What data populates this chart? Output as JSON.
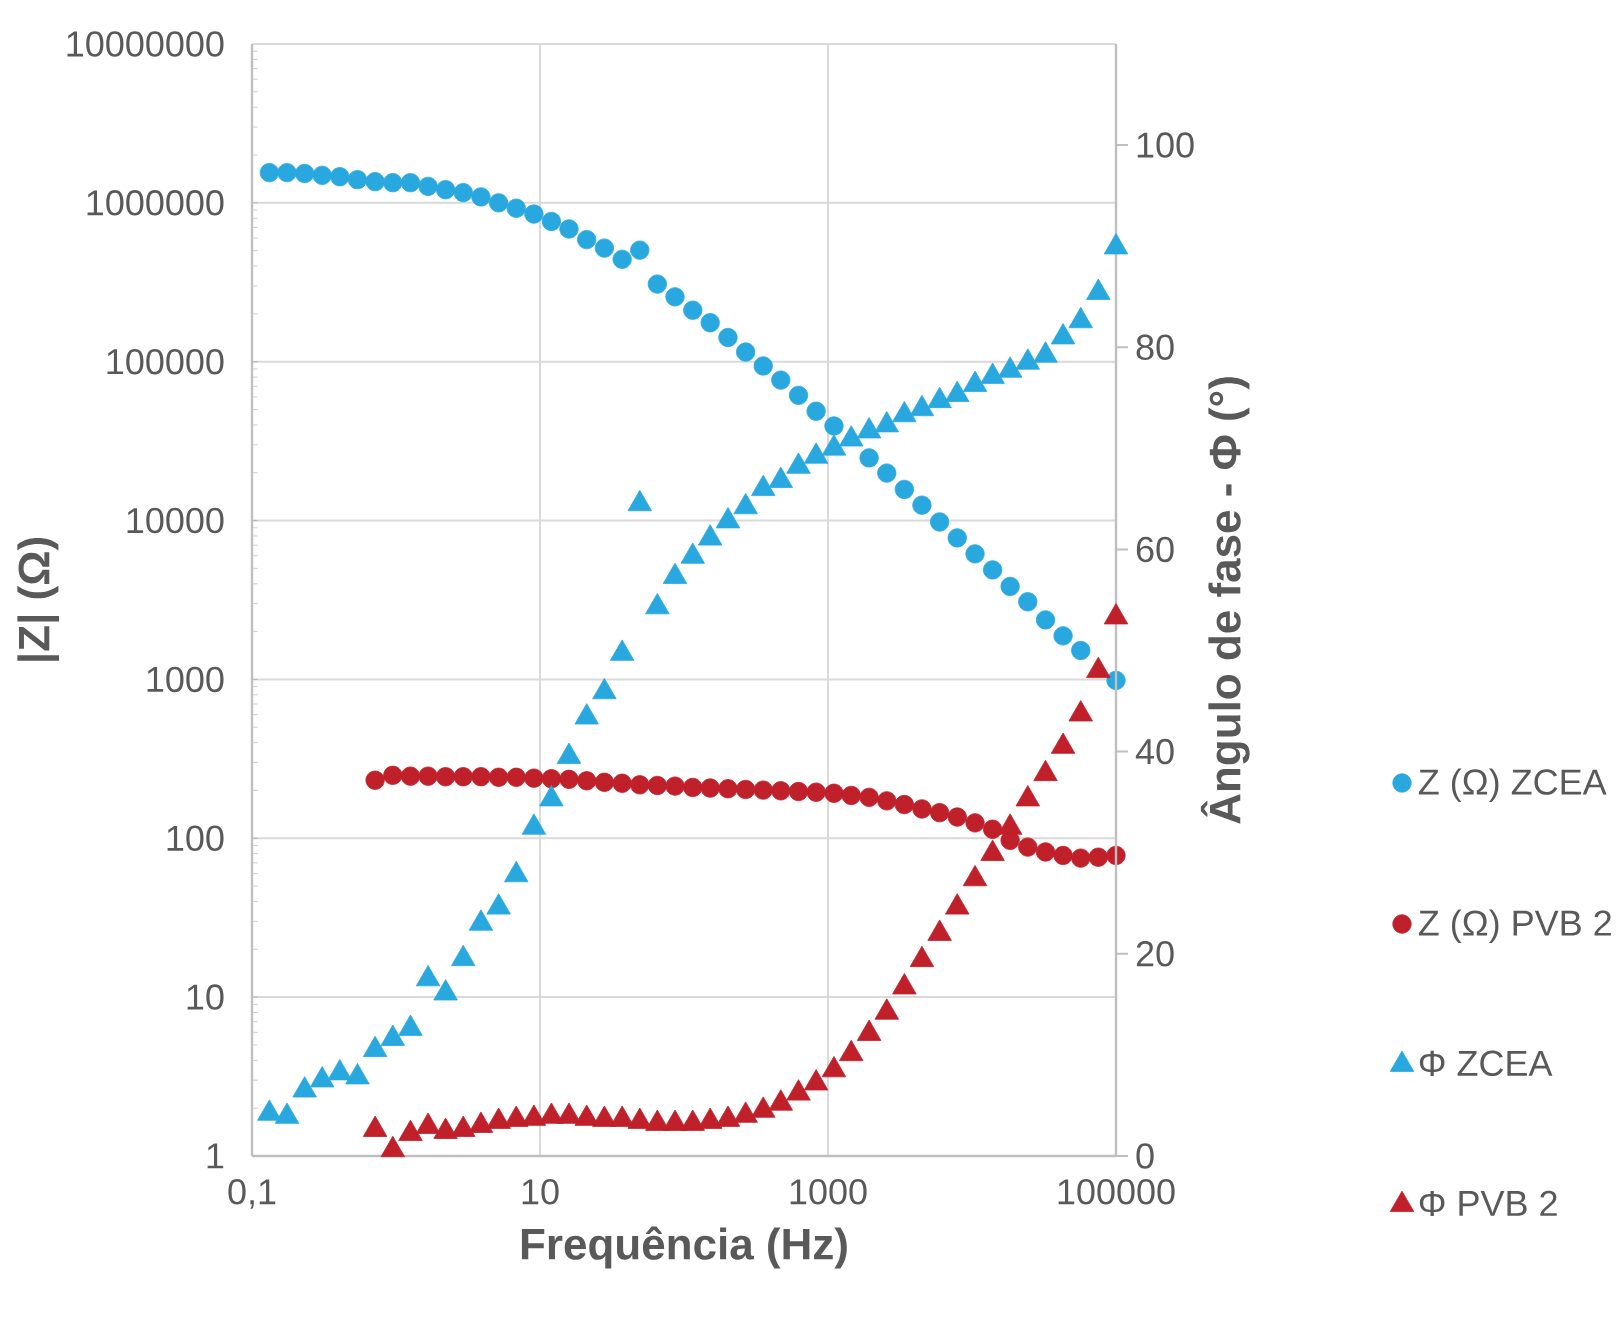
{
  "chart_data": {
    "type": "scatter",
    "xlabel": "Frequência (Hz)",
    "ylabel": "|Z| (Ω)",
    "y2label": "Ângulo de fase - Φ (°)",
    "x": [
      0.132,
      0.175,
      0.232,
      0.307,
      0.407,
      0.54,
      0.716,
      0.95,
      1.26,
      1.67,
      2.21,
      2.93,
      3.89,
      5.16,
      6.84,
      9.07,
      12,
      15.9,
      21.1,
      28,
      37.2,
      49.3,
      65.3,
      86.6,
      115,
      152,
      202,
      268,
      355,
      470,
      624,
      827,
      1100,
      1450,
      1930,
      2560,
      3390,
      4490,
      5960,
      7900,
      10500,
      13900,
      18400,
      24400,
      32400,
      42900,
      56900,
      75400,
      100000
    ],
    "series": [
      {
        "name": "Z (Ω) ZCEA",
        "color": "#29a8df",
        "marker": "circle",
        "axis": "y",
        "values": [
          1550000,
          1550000,
          1530000,
          1490000,
          1460000,
          1400000,
          1360000,
          1340000,
          1340000,
          1270000,
          1210000,
          1160000,
          1090000,
          1000000,
          925000,
          850000,
          764000,
          685000,
          587000,
          519000,
          441000,
          504000,
          308000,
          256000,
          211000,
          176000,
          142000,
          115000,
          94000,
          76600,
          61400,
          48800,
          39400,
          null,
          24800,
          19900,
          15700,
          12500,
          9800,
          7780,
          6170,
          4890,
          3850,
          3080,
          2370,
          1880,
          1520,
          null,
          986
        ]
      },
      {
        "name": "Z (Ω) PVB 2",
        "color": "#c0202a",
        "marker": "circle",
        "axis": "y",
        "x": [
          0.716,
          0.95,
          1.26,
          1.67,
          2.21,
          2.93,
          3.89,
          5.16,
          6.84,
          9.07,
          12,
          15.9,
          21.1,
          28,
          37.2,
          49.3,
          65.3,
          86.6,
          115,
          152,
          202,
          268,
          355,
          470,
          624,
          827,
          1100,
          1450,
          1930,
          2560,
          3390,
          4490,
          5960,
          7900,
          10500,
          13900,
          18400,
          24400,
          32400,
          42900,
          56900,
          75400,
          100000
        ],
        "values": [
          232,
          249,
          246,
          246,
          244,
          244,
          244,
          242,
          242,
          239,
          237,
          235,
          230,
          225,
          222,
          217,
          215,
          213,
          209,
          207,
          205,
          203,
          201,
          199,
          197,
          195,
          192,
          186,
          181,
          172,
          163,
          153,
          145,
          136,
          125,
          114,
          97,
          88,
          82,
          78,
          75,
          76,
          78
        ]
      },
      {
        "name": "Φ ZCEA",
        "color": "#29a8df",
        "marker": "triangle",
        "axis": "y2",
        "values": [
          4.2,
          3.9,
          6.5,
          7.5,
          8.2,
          7.8,
          10.5,
          11.6,
          12.6,
          17.5,
          16.1,
          19.5,
          23.0,
          24.6,
          27.8,
          32.5,
          35.3,
          39.5,
          43.4,
          45.9,
          49.7,
          64.5,
          54.3,
          57.3,
          59.3,
          61.1,
          62.8,
          64.2,
          66.0,
          66.8,
          68.2,
          69.2,
          70.0,
          70.9,
          71.7,
          72.3,
          73.3,
          73.9,
          74.7,
          75.3,
          76.3,
          77.1,
          77.7,
          78.5,
          79.2,
          81.0,
          82.6,
          85.4,
          89.9
        ]
      },
      {
        "name": "Φ PVB 2",
        "color": "#c0202a",
        "marker": "triangle",
        "axis": "y2",
        "x": [
          0.716,
          0.95,
          1.26,
          1.67,
          2.21,
          2.93,
          3.89,
          5.16,
          6.84,
          9.07,
          12,
          15.9,
          21.1,
          28,
          37.2,
          49.3,
          65.3,
          86.6,
          115,
          152,
          202,
          268,
          355,
          470,
          624,
          827,
          1100,
          1450,
          1930,
          2560,
          3390,
          4490,
          5960,
          7900,
          10500,
          13900,
          18400,
          24400,
          32400,
          42900,
          56900,
          75400,
          100000
        ],
        "values": [
          2.6,
          0.6,
          2.2,
          2.9,
          2.4,
          2.6,
          3.0,
          3.4,
          3.6,
          3.7,
          3.9,
          3.9,
          3.7,
          3.6,
          3.6,
          3.4,
          3.2,
          3.2,
          3.2,
          3.4,
          3.6,
          4.0,
          4.5,
          5.2,
          6.2,
          7.2,
          8.5,
          10.1,
          12.1,
          14.2,
          16.7,
          19.4,
          22.0,
          24.6,
          27.4,
          29.9,
          32.5,
          35.3,
          37.8,
          40.5,
          43.7,
          48.0,
          53.3
        ]
      }
    ],
    "xlim": [
      0.1,
      100000
    ],
    "xticks": [
      {
        "value": 0.1,
        "label": "0,1"
      },
      10,
      1000,
      100000
    ],
    "ylim": [
      1,
      10000000
    ],
    "yticks": [
      1,
      10,
      100,
      1000,
      10000,
      100000,
      1000000,
      10000000
    ],
    "y2lim": [
      0,
      110
    ],
    "y2ticks": [
      0,
      20,
      40,
      60,
      80,
      100
    ],
    "log": "xy",
    "grid": true,
    "legend": "right"
  }
}
